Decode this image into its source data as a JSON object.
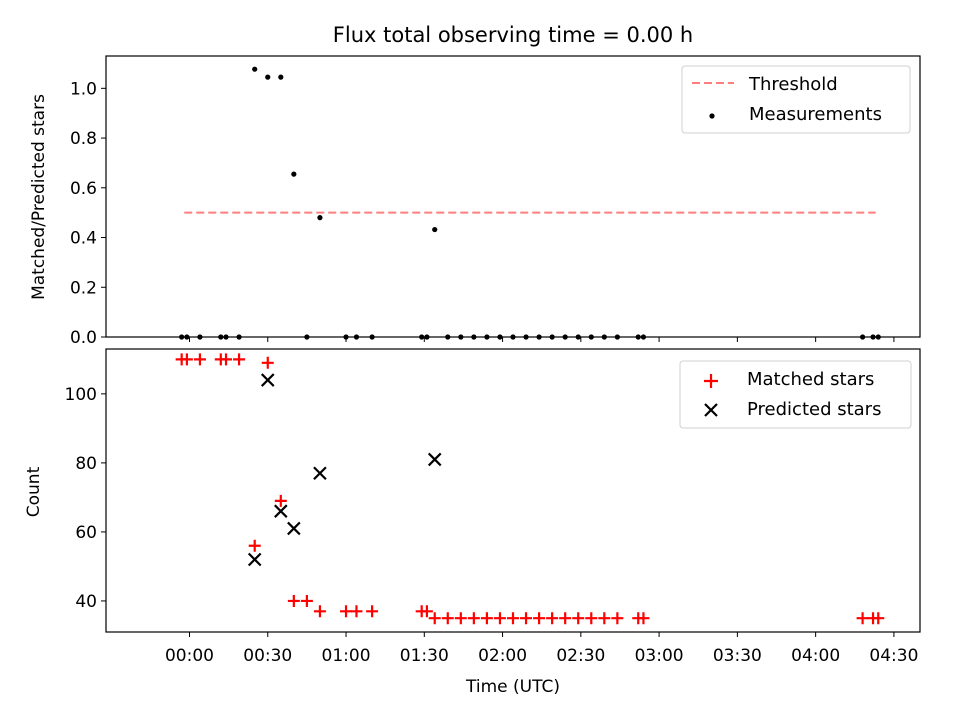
{
  "figure": {
    "title": "Flux total observing time = 0.00 h",
    "xlabel": "Time (UTC)",
    "x_tick_labels": [
      "00:00",
      "00:30",
      "01:00",
      "01:30",
      "02:00",
      "02:30",
      "03:00",
      "03:30",
      "04:00",
      "04:30"
    ]
  },
  "colors": {
    "threshold": "#ff7f7f",
    "measurements": "#000000",
    "matched": "#ff0000",
    "predicted": "#000000"
  },
  "chart_data": [
    {
      "type": "scatter",
      "panel": "top",
      "title": "Flux total observing time = 0.00 h",
      "xlabel": "",
      "ylabel": "Matched/Predicted stars",
      "x_unit": "minutes after 00:00 UTC",
      "xlim": [
        -32,
        280
      ],
      "ylim": [
        0,
        1.13
      ],
      "y_ticks": [
        0.0,
        0.2,
        0.4,
        0.6,
        0.8,
        1.0
      ],
      "y_tick_labels": [
        "0.0",
        "0.2",
        "0.4",
        "0.6",
        "0.8",
        "1.0"
      ],
      "legend": {
        "position": "top-right",
        "entries": [
          "Threshold",
          "Measurements"
        ]
      },
      "threshold": {
        "name": "Threshold",
        "y": 0.5,
        "x_range": [
          -2,
          263
        ],
        "style": "dashed"
      },
      "series": [
        {
          "name": "Measurements",
          "points": [
            [
              -3,
              0
            ],
            [
              -1,
              0
            ],
            [
              4,
              0
            ],
            [
              12,
              0
            ],
            [
              14,
              0
            ],
            [
              19,
              0
            ],
            [
              25,
              1.077
            ],
            [
              30,
              1.045
            ],
            [
              35,
              1.045
            ],
            [
              40,
              0.655
            ],
            [
              45,
              0
            ],
            [
              50,
              0.48
            ],
            [
              60,
              0
            ],
            [
              64,
              0
            ],
            [
              70,
              0
            ],
            [
              89,
              0
            ],
            [
              91,
              0
            ],
            [
              94,
              0.432
            ],
            [
              99,
              0
            ],
            [
              104,
              0
            ],
            [
              109,
              0
            ],
            [
              114,
              0
            ],
            [
              119,
              0
            ],
            [
              124,
              0
            ],
            [
              129,
              0
            ],
            [
              134,
              0
            ],
            [
              139,
              0
            ],
            [
              144,
              0
            ],
            [
              149,
              0
            ],
            [
              154,
              0
            ],
            [
              159,
              0
            ],
            [
              164,
              0
            ],
            [
              172,
              0
            ],
            [
              174,
              0
            ],
            [
              258,
              0
            ],
            [
              262,
              0
            ],
            [
              264,
              0
            ]
          ]
        }
      ]
    },
    {
      "type": "scatter",
      "panel": "bottom",
      "xlabel": "Time (UTC)",
      "ylabel": "Count",
      "x_unit": "minutes after 00:00 UTC",
      "xlim": [
        -32,
        280
      ],
      "ylim": [
        31,
        113
      ],
      "x_ticks": [
        0,
        30,
        60,
        90,
        120,
        150,
        180,
        210,
        240,
        270
      ],
      "y_ticks": [
        40,
        60,
        80,
        100
      ],
      "y_tick_labels": [
        "40",
        "60",
        "80",
        "100"
      ],
      "legend": {
        "position": "top-right",
        "entries": [
          "Matched stars",
          "Predicted stars"
        ]
      },
      "series": [
        {
          "name": "Matched stars",
          "marker": "+",
          "points": [
            [
              -3,
              110
            ],
            [
              -1,
              110
            ],
            [
              4,
              110
            ],
            [
              12,
              110
            ],
            [
              14,
              110
            ],
            [
              19,
              110
            ],
            [
              25,
              56
            ],
            [
              30,
              109
            ],
            [
              35,
              69
            ],
            [
              40,
              40
            ],
            [
              45,
              40
            ],
            [
              50,
              37
            ],
            [
              60,
              37
            ],
            [
              64,
              37
            ],
            [
              70,
              37
            ],
            [
              89,
              37
            ],
            [
              91,
              37
            ],
            [
              94,
              35
            ],
            [
              99,
              35
            ],
            [
              104,
              35
            ],
            [
              109,
              35
            ],
            [
              114,
              35
            ],
            [
              119,
              35
            ],
            [
              124,
              35
            ],
            [
              129,
              35
            ],
            [
              134,
              35
            ],
            [
              139,
              35
            ],
            [
              144,
              35
            ],
            [
              149,
              35
            ],
            [
              154,
              35
            ],
            [
              159,
              35
            ],
            [
              164,
              35
            ],
            [
              172,
              35
            ],
            [
              174,
              35
            ],
            [
              258,
              35
            ],
            [
              262,
              35
            ],
            [
              264,
              35
            ]
          ]
        },
        {
          "name": "Predicted stars",
          "marker": "x",
          "points": [
            [
              25,
              52
            ],
            [
              30,
              104
            ],
            [
              35,
              66
            ],
            [
              40,
              61
            ],
            [
              50,
              77
            ],
            [
              94,
              81
            ]
          ]
        }
      ]
    }
  ]
}
